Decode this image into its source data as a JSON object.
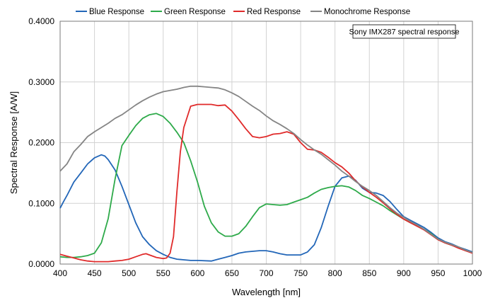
{
  "chart_data": {
    "type": "line",
    "title": "",
    "xlabel": "Wavelength [nm]",
    "ylabel": "Spectral Response [A/W]",
    "xlim": [
      400,
      1000
    ],
    "ylim": [
      0,
      0.4
    ],
    "x_ticks": [
      "400",
      "450",
      "500",
      "550",
      "600",
      "650",
      "700",
      "750",
      "800",
      "850",
      "900",
      "950",
      "1000"
    ],
    "y_ticks": [
      "0.0000",
      "0.1000",
      "0.2000",
      "0.3000",
      "0.4000"
    ],
    "grid": true,
    "legend_position": "top",
    "annotation": "Sony IMX287 spectral response",
    "series": [
      {
        "name": "Blue Response",
        "color": "#2266b8",
        "points": [
          [
            400,
            0.092
          ],
          [
            405,
            0.103
          ],
          [
            410,
            0.113
          ],
          [
            420,
            0.135
          ],
          [
            430,
            0.15
          ],
          [
            440,
            0.165
          ],
          [
            450,
            0.175
          ],
          [
            460,
            0.18
          ],
          [
            465,
            0.178
          ],
          [
            470,
            0.172
          ],
          [
            480,
            0.155
          ],
          [
            490,
            0.128
          ],
          [
            500,
            0.098
          ],
          [
            510,
            0.068
          ],
          [
            520,
            0.045
          ],
          [
            530,
            0.032
          ],
          [
            540,
            0.022
          ],
          [
            550,
            0.016
          ],
          [
            560,
            0.011
          ],
          [
            570,
            0.008
          ],
          [
            580,
            0.007
          ],
          [
            590,
            0.006
          ],
          [
            600,
            0.006
          ],
          [
            620,
            0.005
          ],
          [
            630,
            0.008
          ],
          [
            640,
            0.011
          ],
          [
            650,
            0.014
          ],
          [
            660,
            0.018
          ],
          [
            670,
            0.02
          ],
          [
            680,
            0.021
          ],
          [
            690,
            0.022
          ],
          [
            700,
            0.022
          ],
          [
            710,
            0.02
          ],
          [
            720,
            0.017
          ],
          [
            730,
            0.015
          ],
          [
            740,
            0.015
          ],
          [
            750,
            0.015
          ],
          [
            760,
            0.02
          ],
          [
            770,
            0.032
          ],
          [
            780,
            0.06
          ],
          [
            790,
            0.095
          ],
          [
            800,
            0.128
          ],
          [
            810,
            0.142
          ],
          [
            820,
            0.145
          ],
          [
            830,
            0.138
          ],
          [
            840,
            0.125
          ],
          [
            850,
            0.118
          ],
          [
            860,
            0.117
          ],
          [
            870,
            0.113
          ],
          [
            880,
            0.103
          ],
          [
            890,
            0.09
          ],
          [
            900,
            0.078
          ],
          [
            910,
            0.072
          ],
          [
            920,
            0.066
          ],
          [
            930,
            0.06
          ],
          [
            940,
            0.052
          ],
          [
            950,
            0.043
          ],
          [
            960,
            0.037
          ],
          [
            970,
            0.033
          ],
          [
            980,
            0.028
          ],
          [
            990,
            0.024
          ],
          [
            1000,
            0.02
          ]
        ]
      },
      {
        "name": "Green Response",
        "color": "#2eaa4a",
        "points": [
          [
            400,
            0.012
          ],
          [
            410,
            0.011
          ],
          [
            420,
            0.011
          ],
          [
            430,
            0.012
          ],
          [
            440,
            0.014
          ],
          [
            450,
            0.018
          ],
          [
            460,
            0.035
          ],
          [
            470,
            0.075
          ],
          [
            480,
            0.14
          ],
          [
            490,
            0.195
          ],
          [
            500,
            0.212
          ],
          [
            510,
            0.228
          ],
          [
            520,
            0.24
          ],
          [
            530,
            0.246
          ],
          [
            540,
            0.248
          ],
          [
            550,
            0.243
          ],
          [
            560,
            0.232
          ],
          [
            570,
            0.217
          ],
          [
            580,
            0.2
          ],
          [
            590,
            0.17
          ],
          [
            600,
            0.135
          ],
          [
            610,
            0.095
          ],
          [
            620,
            0.068
          ],
          [
            630,
            0.053
          ],
          [
            640,
            0.046
          ],
          [
            650,
            0.046
          ],
          [
            660,
            0.05
          ],
          [
            670,
            0.062
          ],
          [
            680,
            0.078
          ],
          [
            690,
            0.093
          ],
          [
            700,
            0.099
          ],
          [
            710,
            0.098
          ],
          [
            720,
            0.097
          ],
          [
            730,
            0.098
          ],
          [
            740,
            0.102
          ],
          [
            750,
            0.106
          ],
          [
            760,
            0.11
          ],
          [
            770,
            0.117
          ],
          [
            780,
            0.123
          ],
          [
            790,
            0.126
          ],
          [
            800,
            0.128
          ],
          [
            810,
            0.129
          ],
          [
            820,
            0.127
          ],
          [
            830,
            0.121
          ],
          [
            840,
            0.113
          ],
          [
            850,
            0.108
          ],
          [
            860,
            0.102
          ],
          [
            870,
            0.096
          ],
          [
            880,
            0.088
          ],
          [
            890,
            0.081
          ],
          [
            900,
            0.074
          ],
          [
            910,
            0.068
          ],
          [
            920,
            0.063
          ],
          [
            930,
            0.057
          ],
          [
            940,
            0.05
          ],
          [
            950,
            0.041
          ],
          [
            960,
            0.035
          ],
          [
            970,
            0.031
          ],
          [
            980,
            0.027
          ],
          [
            990,
            0.022
          ],
          [
            1000,
            0.019
          ]
        ]
      },
      {
        "name": "Red Response",
        "color": "#e02a2a",
        "points": [
          [
            400,
            0.016
          ],
          [
            410,
            0.013
          ],
          [
            420,
            0.01
          ],
          [
            430,
            0.007
          ],
          [
            440,
            0.005
          ],
          [
            450,
            0.004
          ],
          [
            460,
            0.004
          ],
          [
            470,
            0.004
          ],
          [
            480,
            0.005
          ],
          [
            490,
            0.006
          ],
          [
            500,
            0.008
          ],
          [
            510,
            0.012
          ],
          [
            520,
            0.016
          ],
          [
            525,
            0.017
          ],
          [
            530,
            0.015
          ],
          [
            540,
            0.011
          ],
          [
            550,
            0.009
          ],
          [
            555,
            0.01
          ],
          [
            560,
            0.018
          ],
          [
            565,
            0.045
          ],
          [
            570,
            0.12
          ],
          [
            575,
            0.185
          ],
          [
            580,
            0.225
          ],
          [
            590,
            0.26
          ],
          [
            600,
            0.263
          ],
          [
            610,
            0.263
          ],
          [
            620,
            0.263
          ],
          [
            630,
            0.261
          ],
          [
            640,
            0.262
          ],
          [
            650,
            0.252
          ],
          [
            660,
            0.238
          ],
          [
            670,
            0.223
          ],
          [
            680,
            0.21
          ],
          [
            690,
            0.208
          ],
          [
            700,
            0.21
          ],
          [
            710,
            0.214
          ],
          [
            720,
            0.215
          ],
          [
            730,
            0.218
          ],
          [
            740,
            0.214
          ],
          [
            750,
            0.2
          ],
          [
            760,
            0.189
          ],
          [
            770,
            0.188
          ],
          [
            780,
            0.184
          ],
          [
            790,
            0.176
          ],
          [
            800,
            0.167
          ],
          [
            810,
            0.16
          ],
          [
            820,
            0.15
          ],
          [
            830,
            0.137
          ],
          [
            840,
            0.127
          ],
          [
            850,
            0.118
          ],
          [
            860,
            0.11
          ],
          [
            870,
            0.101
          ],
          [
            880,
            0.091
          ],
          [
            890,
            0.082
          ],
          [
            900,
            0.074
          ],
          [
            910,
            0.068
          ],
          [
            920,
            0.062
          ],
          [
            930,
            0.056
          ],
          [
            940,
            0.048
          ],
          [
            950,
            0.04
          ],
          [
            960,
            0.035
          ],
          [
            970,
            0.031
          ],
          [
            980,
            0.026
          ],
          [
            990,
            0.022
          ],
          [
            1000,
            0.018
          ]
        ]
      },
      {
        "name": "Monochrome Response",
        "color": "#858585",
        "points": [
          [
            400,
            0.153
          ],
          [
            410,
            0.165
          ],
          [
            420,
            0.185
          ],
          [
            430,
            0.197
          ],
          [
            440,
            0.21
          ],
          [
            450,
            0.218
          ],
          [
            460,
            0.225
          ],
          [
            470,
            0.232
          ],
          [
            480,
            0.24
          ],
          [
            490,
            0.246
          ],
          [
            500,
            0.254
          ],
          [
            510,
            0.262
          ],
          [
            520,
            0.269
          ],
          [
            530,
            0.275
          ],
          [
            540,
            0.28
          ],
          [
            550,
            0.284
          ],
          [
            560,
            0.286
          ],
          [
            570,
            0.288
          ],
          [
            580,
            0.291
          ],
          [
            590,
            0.293
          ],
          [
            600,
            0.293
          ],
          [
            610,
            0.292
          ],
          [
            620,
            0.291
          ],
          [
            630,
            0.29
          ],
          [
            640,
            0.287
          ],
          [
            650,
            0.282
          ],
          [
            660,
            0.276
          ],
          [
            670,
            0.268
          ],
          [
            680,
            0.26
          ],
          [
            690,
            0.253
          ],
          [
            700,
            0.244
          ],
          [
            710,
            0.236
          ],
          [
            720,
            0.23
          ],
          [
            730,
            0.223
          ],
          [
            740,
            0.215
          ],
          [
            750,
            0.205
          ],
          [
            760,
            0.196
          ],
          [
            770,
            0.188
          ],
          [
            780,
            0.181
          ],
          [
            790,
            0.172
          ],
          [
            800,
            0.163
          ],
          [
            810,
            0.153
          ],
          [
            820,
            0.145
          ],
          [
            830,
            0.136
          ],
          [
            840,
            0.128
          ],
          [
            850,
            0.121
          ],
          [
            860,
            0.113
          ],
          [
            870,
            0.103
          ],
          [
            880,
            0.093
          ],
          [
            890,
            0.084
          ],
          [
            900,
            0.077
          ],
          [
            910,
            0.07
          ],
          [
            920,
            0.064
          ],
          [
            930,
            0.057
          ],
          [
            940,
            0.049
          ],
          [
            950,
            0.041
          ],
          [
            960,
            0.036
          ],
          [
            970,
            0.032
          ],
          [
            980,
            0.028
          ],
          [
            990,
            0.023
          ],
          [
            1000,
            0.019
          ]
        ]
      }
    ]
  }
}
